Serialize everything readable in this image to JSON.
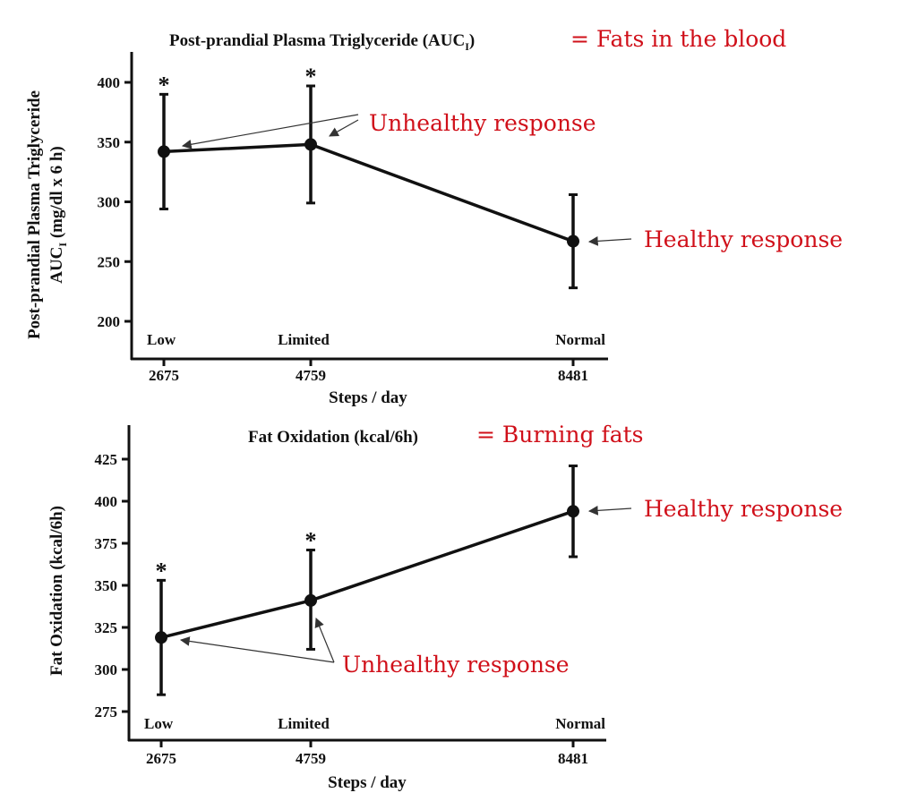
{
  "colors": {
    "annotation": "#d0101a",
    "ink": "#111111",
    "arrow": "#333333"
  },
  "chart_data": [
    {
      "type": "line",
      "title": "Post-prandial Plasma Triglyceride (AUC",
      "title_sub": "I",
      "title_close": ")",
      "title_annotation": "= Fats in the blood",
      "ylabel_line1": "Post-prandial Plasma Triglyceride",
      "ylabel_line2_prefix": "AUC",
      "ylabel_line2_sub": "I",
      "ylabel_line2_suffix": " (mg/dl x 6 h)",
      "xlabel": "Steps / day",
      "ylim": [
        175,
        425
      ],
      "yticks": [
        200,
        250,
        300,
        350,
        400
      ],
      "grid": false,
      "categories": [
        "Low",
        "Limited",
        "Normal"
      ],
      "x": [
        2675,
        4759,
        8481
      ],
      "x_tick_labels": [
        "2675",
        "4759",
        "8481"
      ],
      "series": [
        {
          "name": "Triglyceride AUC",
          "values": [
            342,
            348,
            267
          ],
          "err_upper": [
            390,
            397,
            306
          ],
          "err_lower": [
            294,
            299,
            228
          ],
          "significance": [
            "*",
            "*",
            ""
          ]
        }
      ],
      "annotations": [
        {
          "text": "Unhealthy response",
          "targets": [
            "Low",
            "Limited"
          ]
        },
        {
          "text": "Healthy response",
          "targets": [
            "Normal"
          ]
        }
      ]
    },
    {
      "type": "line",
      "title": "Fat Oxidation (kcal/6h)",
      "title_annotation": "= Burning fats",
      "ylabel": "Fat Oxidation (kcal/6h)",
      "xlabel": "Steps / day",
      "ylim": [
        262,
        442
      ],
      "yticks": [
        275,
        300,
        325,
        350,
        375,
        400,
        425
      ],
      "grid": false,
      "categories": [
        "Low",
        "Limited",
        "Normal"
      ],
      "x": [
        2675,
        4759,
        8481
      ],
      "x_tick_labels": [
        "2675",
        "4759",
        "8481"
      ],
      "series": [
        {
          "name": "Fat Oxidation",
          "values": [
            319,
            341,
            394
          ],
          "err_upper": [
            353,
            371,
            421
          ],
          "err_lower": [
            285,
            312,
            367
          ],
          "significance": [
            "*",
            "*",
            ""
          ]
        }
      ],
      "annotations": [
        {
          "text": "Unhealthy response",
          "targets": [
            "Low",
            "Limited"
          ]
        },
        {
          "text": "Healthy response",
          "targets": [
            "Normal"
          ]
        }
      ]
    }
  ]
}
